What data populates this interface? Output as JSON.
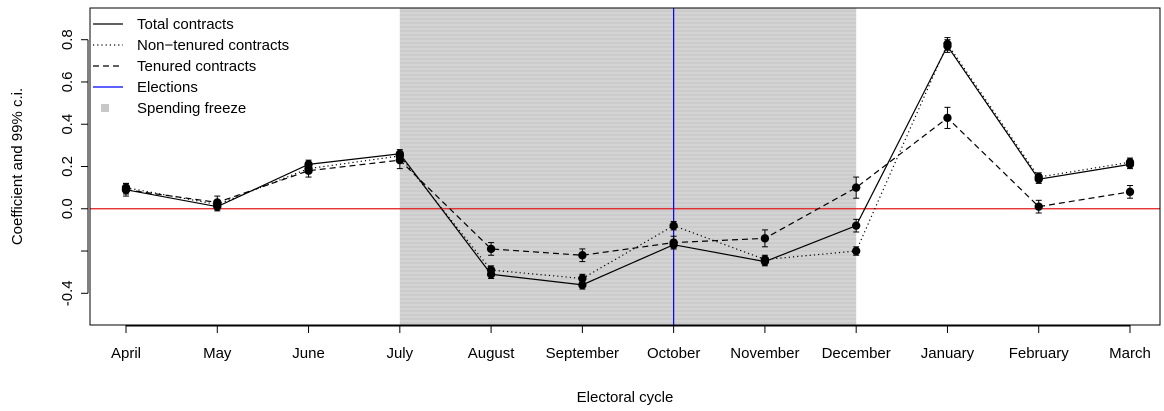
{
  "chart_data": {
    "type": "line",
    "xlabel": "Electoral cycle",
    "ylabel": "Coefficient and 99% c.i.",
    "categories": [
      "April",
      "May",
      "June",
      "July",
      "August",
      "September",
      "October",
      "November",
      "December",
      "January",
      "February",
      "March"
    ],
    "ylim": [
      -0.55,
      0.95
    ],
    "yticks": [
      -0.4,
      -0.2,
      0.0,
      0.2,
      0.4,
      0.6,
      0.8
    ],
    "ytick_labels": [
      "-0.4",
      "",
      "0.0",
      "0.2",
      "0.4",
      "0.6",
      "0.8"
    ],
    "legend_position": "top-left",
    "reference_line": {
      "y": 0,
      "color": "#e31a1c"
    },
    "elections_month": "October",
    "elections_color": "#0000ff",
    "freeze": {
      "from": "July",
      "to": "December",
      "color": "#d3d3d3"
    },
    "series": [
      {
        "name": "Total contracts",
        "line": "solid",
        "values": [
          0.09,
          0.01,
          0.21,
          0.26,
          -0.31,
          -0.36,
          -0.17,
          -0.25,
          -0.08,
          0.77,
          0.14,
          0.21
        ],
        "err": [
          0.02,
          0.02,
          0.02,
          0.02,
          0.02,
          0.02,
          0.02,
          0.02,
          0.03,
          0.03,
          0.02,
          0.02
        ]
      },
      {
        "name": "Non−tenured contracts",
        "line": "dotted",
        "values": [
          0.1,
          0.02,
          0.19,
          0.25,
          -0.29,
          -0.33,
          -0.08,
          -0.24,
          -0.2,
          0.78,
          0.15,
          0.22
        ],
        "err": [
          0.02,
          0.02,
          0.02,
          0.02,
          0.02,
          0.02,
          0.02,
          0.02,
          0.02,
          0.03,
          0.02,
          0.02
        ]
      },
      {
        "name": "Tenured contracts",
        "line": "dashed",
        "values": [
          0.09,
          0.03,
          0.18,
          0.23,
          -0.19,
          -0.22,
          -0.16,
          -0.14,
          0.1,
          0.43,
          0.01,
          0.08
        ],
        "err": [
          0.03,
          0.03,
          0.03,
          0.04,
          0.03,
          0.03,
          0.03,
          0.04,
          0.05,
          0.05,
          0.03,
          0.03
        ]
      }
    ],
    "legend": [
      {
        "label": "Total contracts",
        "kind": "solid"
      },
      {
        "label": "Non−tenured contracts",
        "kind": "dotted"
      },
      {
        "label": "Tenured contracts",
        "kind": "dashed"
      },
      {
        "label": "Elections",
        "kind": "blue"
      },
      {
        "label": "Spending freeze",
        "kind": "square"
      }
    ]
  }
}
